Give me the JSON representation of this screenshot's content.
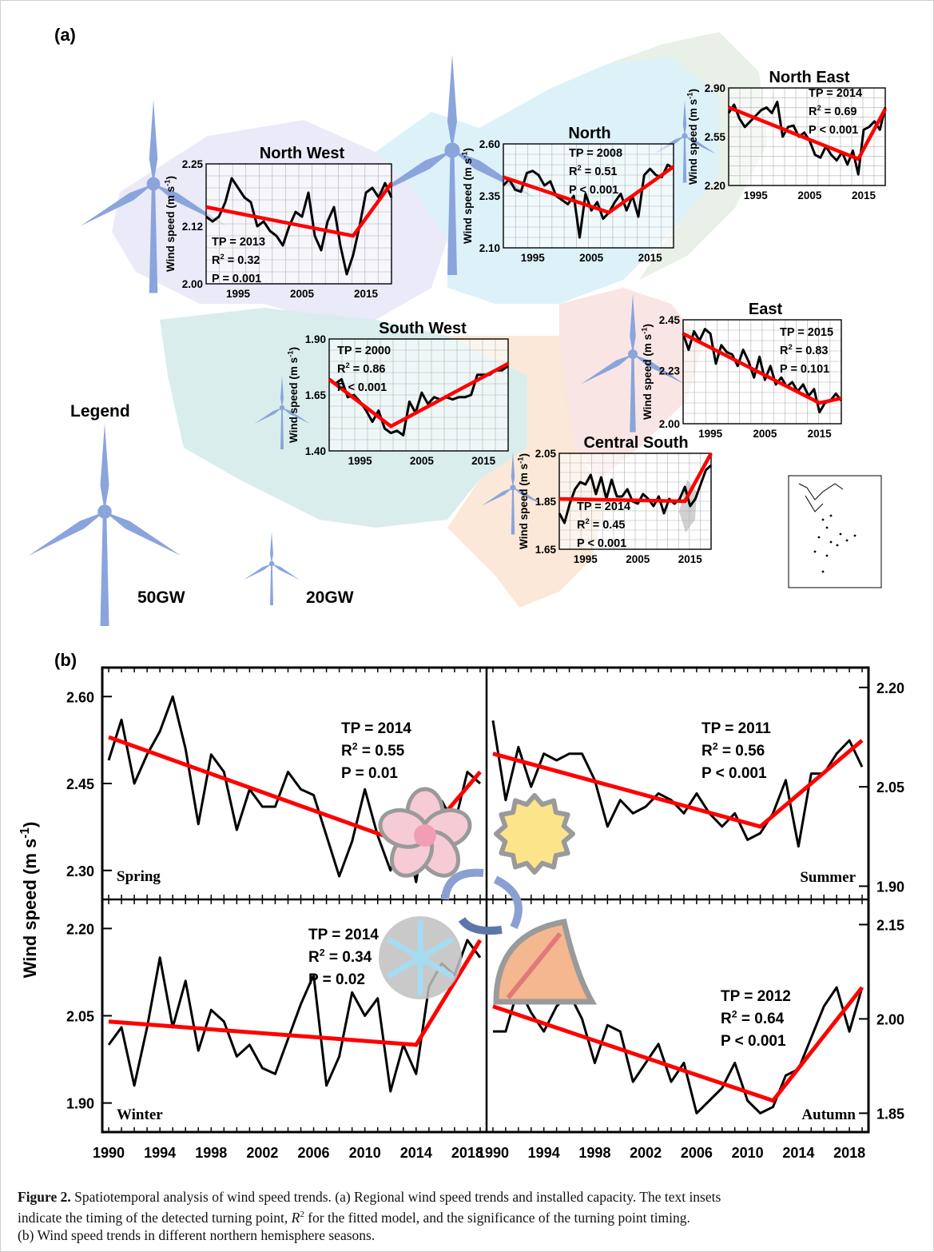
{
  "figure": {
    "panel_a_label": "(a)",
    "panel_b_label": "(b)",
    "legend": {
      "title": "Legend",
      "big_label": "50GW",
      "small_label": "20GW"
    },
    "colors": {
      "line": "#000000",
      "trend": "#ff0000",
      "turbine": "#8aa4dc"
    }
  },
  "caption": {
    "lead": "Figure 2.",
    "line1": " Spatiotemporal analysis of wind speed trends. (a) Regional wind speed trends and installed capacity. The text insets",
    "line2a": "indicate the timing of the detected turning point, ",
    "r2": "R",
    "r2sup": "2",
    "line2b": " for the fitted model, and the significance of the turning point timing.",
    "line3": "(b) Wind speed trends in different northern hemisphere seasons."
  },
  "chart_data": [
    {
      "type": "line",
      "id": "north-west",
      "title": "North West",
      "ylabel": "Wind speed (m s-1)",
      "ylim": [
        2.0,
        2.25
      ],
      "yticks": [
        "2.25",
        "2.12",
        "2.00"
      ],
      "xlim": [
        1990,
        2019
      ],
      "xticks": [
        "1995",
        "2005",
        "2015"
      ],
      "stats": [
        "TP = 2013",
        "R2 = 0.32",
        "P = 0.001"
      ],
      "x": [
        1990,
        1991,
        1992,
        1993,
        1994,
        1995,
        1996,
        1997,
        1998,
        1999,
        2000,
        2001,
        2002,
        2003,
        2004,
        2005,
        2006,
        2007,
        2008,
        2009,
        2010,
        2011,
        2012,
        2013,
        2014,
        2015,
        2016,
        2017,
        2018,
        2019
      ],
      "values": [
        2.14,
        2.13,
        2.14,
        2.17,
        2.22,
        2.2,
        2.18,
        2.17,
        2.12,
        2.13,
        2.11,
        2.1,
        2.08,
        2.12,
        2.15,
        2.14,
        2.19,
        2.1,
        2.07,
        2.13,
        2.16,
        2.08,
        2.02,
        2.06,
        2.12,
        2.19,
        2.2,
        2.18,
        2.21,
        2.18
      ],
      "trend_x": [
        1990,
        2013,
        2019
      ],
      "trend_y": [
        2.16,
        2.1,
        2.21
      ]
    },
    {
      "type": "line",
      "id": "north",
      "title": "North",
      "ylabel": "Wind speed (m s-1)",
      "ylim": [
        2.1,
        2.6
      ],
      "yticks": [
        "2.60",
        "2.35",
        "2.10"
      ],
      "xlim": [
        1990,
        2019
      ],
      "xticks": [
        "1995",
        "2005",
        "2015"
      ],
      "stats": [
        "TP = 2008",
        "R2 = 0.51",
        "P < 0.001"
      ],
      "x": [
        1990,
        1991,
        1992,
        1993,
        1994,
        1995,
        1996,
        1997,
        1998,
        1999,
        2000,
        2001,
        2002,
        2003,
        2004,
        2005,
        2006,
        2007,
        2008,
        2009,
        2010,
        2011,
        2012,
        2013,
        2014,
        2015,
        2016,
        2017,
        2018,
        2019
      ],
      "values": [
        2.4,
        2.43,
        2.38,
        2.37,
        2.46,
        2.47,
        2.45,
        2.4,
        2.42,
        2.35,
        2.33,
        2.31,
        2.35,
        2.15,
        2.36,
        2.28,
        2.32,
        2.24,
        2.27,
        2.32,
        2.36,
        2.28,
        2.35,
        2.25,
        2.45,
        2.48,
        2.45,
        2.44,
        2.5,
        2.48
      ],
      "trend_x": [
        1990,
        2008,
        2019
      ],
      "trend_y": [
        2.44,
        2.27,
        2.49
      ]
    },
    {
      "type": "line",
      "id": "north-east",
      "title": "North East",
      "ylabel": "Wind speed (m s-1)",
      "ylim": [
        2.2,
        2.9
      ],
      "yticks": [
        "2.90",
        "2.55",
        "2.20"
      ],
      "xlim": [
        1990,
        2019
      ],
      "xticks": [
        "1995",
        "2005",
        "2015"
      ],
      "stats": [
        "TP = 2014",
        "R2 = 0.69",
        "P < 0.001"
      ],
      "x": [
        1990,
        1991,
        1992,
        1993,
        1994,
        1995,
        1996,
        1997,
        1998,
        1999,
        2000,
        2001,
        2002,
        2003,
        2004,
        2005,
        2006,
        2007,
        2008,
        2009,
        2010,
        2011,
        2012,
        2013,
        2014,
        2015,
        2016,
        2017,
        2018,
        2019
      ],
      "values": [
        2.72,
        2.78,
        2.68,
        2.62,
        2.66,
        2.7,
        2.74,
        2.76,
        2.72,
        2.8,
        2.55,
        2.62,
        2.63,
        2.55,
        2.58,
        2.52,
        2.42,
        2.4,
        2.48,
        2.42,
        2.38,
        2.44,
        2.35,
        2.45,
        2.28,
        2.6,
        2.62,
        2.66,
        2.6,
        2.76
      ],
      "trend_x": [
        1990,
        2014,
        2019
      ],
      "trend_y": [
        2.76,
        2.39,
        2.75
      ]
    },
    {
      "type": "line",
      "id": "south-west",
      "title": "South West",
      "ylabel": "Wind speed (m s-1)",
      "ylim": [
        1.4,
        1.9
      ],
      "yticks": [
        "1.90",
        "1.65",
        "1.40"
      ],
      "xlim": [
        1990,
        2019
      ],
      "xticks": [
        "1995",
        "2005",
        "2015"
      ],
      "stats": [
        "TP = 2000",
        "R2 = 0.86",
        "P < 0.001"
      ],
      "x": [
        1990,
        1991,
        1992,
        1993,
        1994,
        1995,
        1996,
        1997,
        1998,
        1999,
        2000,
        2001,
        2002,
        2003,
        2004,
        2005,
        2006,
        2007,
        2008,
        2009,
        2010,
        2011,
        2012,
        2013,
        2014,
        2015,
        2016,
        2017,
        2018,
        2019
      ],
      "values": [
        1.72,
        1.7,
        1.72,
        1.64,
        1.65,
        1.62,
        1.58,
        1.53,
        1.58,
        1.5,
        1.48,
        1.49,
        1.47,
        1.62,
        1.57,
        1.66,
        1.61,
        1.64,
        1.63,
        1.64,
        1.63,
        1.64,
        1.64,
        1.65,
        1.74,
        1.74,
        1.74,
        1.76,
        1.76,
        1.78
      ],
      "trend_x": [
        1990,
        2000,
        2019
      ],
      "trend_y": [
        1.72,
        1.51,
        1.79
      ]
    },
    {
      "type": "line",
      "id": "east",
      "title": "East",
      "ylabel": "Wind speed (m s-1)",
      "ylim": [
        2.0,
        2.45
      ],
      "yticks": [
        "2.45",
        "2.23",
        "2.00"
      ],
      "xlim": [
        1990,
        2019
      ],
      "xticks": [
        "1995",
        "2005",
        "2015"
      ],
      "stats": [
        "TP = 2015",
        "R2 = 0.83",
        "P = 0.101"
      ],
      "x": [
        1990,
        1991,
        1992,
        1993,
        1994,
        1995,
        1996,
        1997,
        1998,
        1999,
        2000,
        2001,
        2002,
        2003,
        2004,
        2005,
        2006,
        2007,
        2008,
        2009,
        2010,
        2011,
        2012,
        2013,
        2014,
        2015,
        2016,
        2017,
        2018,
        2019
      ],
      "values": [
        2.39,
        2.32,
        2.4,
        2.36,
        2.41,
        2.39,
        2.26,
        2.34,
        2.31,
        2.3,
        2.25,
        2.32,
        2.27,
        2.2,
        2.29,
        2.19,
        2.25,
        2.17,
        2.2,
        2.16,
        2.18,
        2.14,
        2.17,
        2.12,
        2.15,
        2.05,
        2.09,
        2.1,
        2.13,
        2.1
      ],
      "trend_x": [
        1990,
        2015,
        2019
      ],
      "trend_y": [
        2.39,
        2.09,
        2.11
      ]
    },
    {
      "type": "line",
      "id": "central-south",
      "title": "Central South",
      "ylabel": "Wind speed (m s-1)",
      "ylim": [
        1.65,
        2.05
      ],
      "yticks": [
        "2.05",
        "1.85",
        "1.65"
      ],
      "xlim": [
        1990,
        2019
      ],
      "xticks": [
        "1995",
        "2005",
        "2015"
      ],
      "stats": [
        "TP = 2014",
        "R2 = 0.45",
        "P < 0.001"
      ],
      "x": [
        1990,
        1991,
        1992,
        1993,
        1994,
        1995,
        1996,
        1997,
        1998,
        1999,
        2000,
        2001,
        2002,
        2003,
        2004,
        2005,
        2006,
        2007,
        2008,
        2009,
        2010,
        2011,
        2012,
        2013,
        2014,
        2015,
        2016,
        2017,
        2018,
        2019
      ],
      "values": [
        1.8,
        1.76,
        1.84,
        1.9,
        1.93,
        1.92,
        1.96,
        1.88,
        1.95,
        1.86,
        1.94,
        1.87,
        1.87,
        1.9,
        1.85,
        1.84,
        1.88,
        1.86,
        1.83,
        1.87,
        1.8,
        1.86,
        1.84,
        1.86,
        1.91,
        1.83,
        1.86,
        1.92,
        1.98,
        2.0
      ],
      "trend_x": [
        1990,
        2014,
        2019
      ],
      "trend_y": [
        1.86,
        1.85,
        2.05
      ]
    },
    {
      "type": "line",
      "id": "spring",
      "season": "Spring",
      "axis": "left",
      "ylim": [
        2.25,
        2.65
      ],
      "yticks": [
        "2.60",
        "2.45",
        "2.30"
      ],
      "stats": [
        "TP = 2014",
        "R2 = 0.55",
        "P = 0.01"
      ],
      "x": [
        1990,
        1991,
        1992,
        1993,
        1994,
        1995,
        1996,
        1997,
        1998,
        1999,
        2000,
        2001,
        2002,
        2003,
        2004,
        2005,
        2006,
        2007,
        2008,
        2009,
        2010,
        2011,
        2012,
        2013,
        2014,
        2015,
        2016,
        2017,
        2018,
        2019
      ],
      "values": [
        2.49,
        2.56,
        2.45,
        2.5,
        2.54,
        2.6,
        2.51,
        2.38,
        2.5,
        2.47,
        2.37,
        2.44,
        2.41,
        2.41,
        2.47,
        2.44,
        2.43,
        2.36,
        2.29,
        2.35,
        2.44,
        2.36,
        2.3,
        2.38,
        2.28,
        2.42,
        2.42,
        2.38,
        2.47,
        2.45
      ],
      "trend_x": [
        1990,
        2014,
        2019
      ],
      "trend_y": [
        2.53,
        2.34,
        2.47
      ]
    },
    {
      "type": "line",
      "id": "summer",
      "season": "Summer",
      "axis": "right",
      "ylim": [
        1.88,
        2.23
      ],
      "yticks": [
        "2.20",
        "2.05",
        "1.90"
      ],
      "stats": [
        "TP = 2011",
        "R2 = 0.56",
        "P < 0.001"
      ],
      "x": [
        1990,
        1991,
        1992,
        1993,
        1994,
        1995,
        1996,
        1997,
        1998,
        1999,
        2000,
        2001,
        2002,
        2003,
        2004,
        2005,
        2006,
        2007,
        2008,
        2009,
        2010,
        2011,
        2012,
        2013,
        2014,
        2015,
        2016,
        2017,
        2018,
        2019
      ],
      "values": [
        2.15,
        2.03,
        2.11,
        2.05,
        2.1,
        2.09,
        2.1,
        2.1,
        2.06,
        1.99,
        2.03,
        2.01,
        2.02,
        2.04,
        2.03,
        2.01,
        2.04,
        2.01,
        1.99,
        2.01,
        1.97,
        1.98,
        2.01,
        2.06,
        1.96,
        2.07,
        2.07,
        2.1,
        2.12,
        2.08
      ],
      "trend_x": [
        1990,
        2011,
        2019
      ],
      "trend_y": [
        2.1,
        1.99,
        2.12
      ]
    },
    {
      "type": "line",
      "id": "winter",
      "season": "Winter",
      "axis": "left",
      "ylim": [
        1.85,
        2.25
      ],
      "yticks": [
        "2.20",
        "2.05",
        "1.90"
      ],
      "stats": [
        "TP = 2014",
        "R2 = 0.34",
        "P = 0.02"
      ],
      "x": [
        1990,
        1991,
        1992,
        1993,
        1994,
        1995,
        1996,
        1997,
        1998,
        1999,
        2000,
        2001,
        2002,
        2003,
        2004,
        2005,
        2006,
        2007,
        2008,
        2009,
        2010,
        2011,
        2012,
        2013,
        2014,
        2015,
        2016,
        2017,
        2018,
        2019
      ],
      "values": [
        2.0,
        2.03,
        1.93,
        2.03,
        2.15,
        2.03,
        2.11,
        1.99,
        2.06,
        2.04,
        1.98,
        2.0,
        1.96,
        1.95,
        2.01,
        2.07,
        2.12,
        1.93,
        1.98,
        2.09,
        2.05,
        2.08,
        1.92,
        2.0,
        1.95,
        2.1,
        2.14,
        2.12,
        2.18,
        2.15
      ],
      "trend_x": [
        1990,
        2014,
        2019
      ],
      "trend_y": [
        2.04,
        2.0,
        2.18
      ]
    },
    {
      "type": "line",
      "id": "autumn",
      "season": "Autumn",
      "axis": "right",
      "ylim": [
        1.82,
        2.19
      ],
      "yticks": [
        "2.15",
        "2.00",
        "1.85"
      ],
      "stats": [
        "TP = 2012",
        "R2 = 0.64",
        "P < 0.001"
      ],
      "x": [
        1990,
        1991,
        1992,
        1993,
        1994,
        1995,
        1996,
        1997,
        1998,
        1999,
        2000,
        2001,
        2002,
        2003,
        2004,
        2005,
        2006,
        2007,
        2008,
        2009,
        2010,
        2011,
        2012,
        2013,
        2014,
        2015,
        2016,
        2017,
        2018,
        2019
      ],
      "values": [
        1.98,
        1.98,
        2.05,
        2.01,
        1.98,
        2.02,
        2.04,
        2.0,
        1.93,
        1.99,
        1.98,
        1.9,
        1.93,
        1.96,
        1.9,
        1.93,
        1.85,
        1.87,
        1.89,
        1.93,
        1.87,
        1.85,
        1.86,
        1.91,
        1.92,
        1.97,
        2.02,
        2.05,
        1.98,
        2.05
      ],
      "trend_x": [
        1990,
        2012,
        2019
      ],
      "trend_y": [
        2.02,
        1.87,
        2.05
      ]
    }
  ],
  "panel_b": {
    "ylabel": "Wind speed (m s-1)",
    "xticks": [
      "1990",
      "1994",
      "1998",
      "2002",
      "2006",
      "2010",
      "2014",
      "2018"
    ],
    "xlim": [
      1989.5,
      2019.5
    ]
  }
}
